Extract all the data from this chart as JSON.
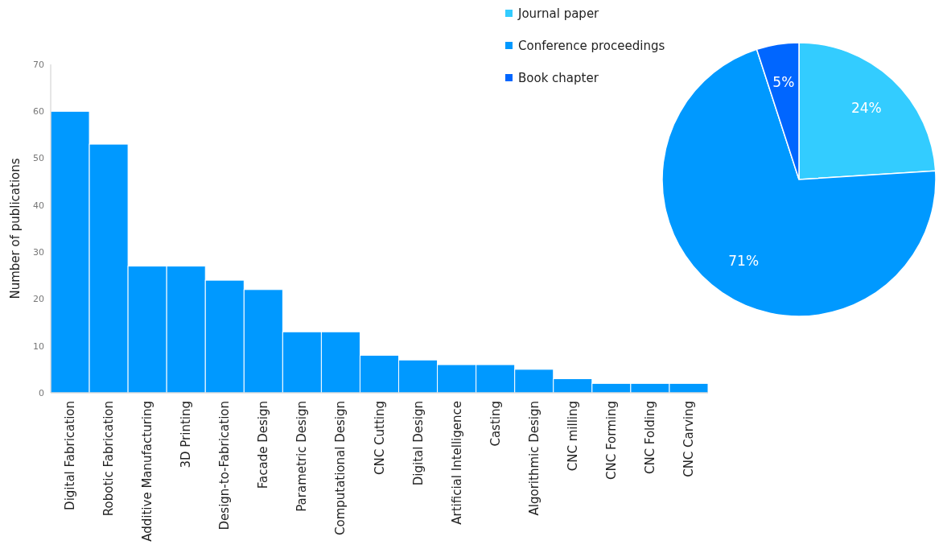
{
  "chart_data": [
    {
      "type": "bar",
      "ylabel": "Number of publications",
      "categories": [
        "Digital Fabrication",
        "Robotic Fabrication",
        "Additive Manufacturing",
        "3D Printing",
        "Design-to-Fabrication",
        "Facade Design",
        "Parametric Design",
        "Computational Design",
        "CNC Cutting",
        "Digital Design",
        "Artificial Intelligence",
        "Casting",
        "Algorithmic Design",
        "CNC milling",
        "CNC Forming",
        "CNC Folding",
        "CNC Carving"
      ],
      "values": [
        60,
        53,
        27,
        27,
        24,
        22,
        13,
        13,
        8,
        7,
        6,
        6,
        5,
        3,
        2,
        2,
        2
      ],
      "color": "#0099ff",
      "ylim": [
        0,
        70
      ],
      "yticks": [
        0,
        10,
        20,
        30,
        40,
        50,
        60,
        70
      ],
      "grid": false
    },
    {
      "type": "pie",
      "categories": [
        "Journal paper",
        "Conference proceedings",
        "Book chapter"
      ],
      "values": [
        24,
        71,
        5
      ],
      "colors": [
        "#33ccff",
        "#0099ff",
        "#0066ff"
      ],
      "value_labels": [
        "24%",
        "71%",
        "5%"
      ],
      "legend": "top left"
    }
  ]
}
